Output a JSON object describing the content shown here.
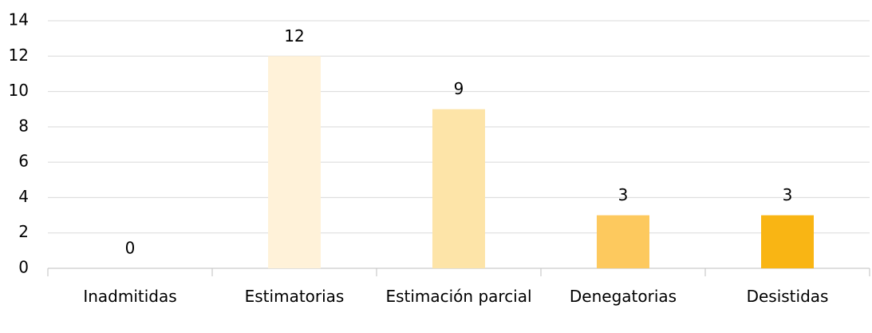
{
  "chart_data": {
    "type": "bar",
    "categories": [
      "Inadmitidas",
      "Estimatorias",
      "Estimación parcial",
      "Denegatorias",
      "Desistidas"
    ],
    "values": [
      0,
      12,
      9,
      3,
      3
    ],
    "colors": [
      "#fff3dc",
      "#fff2d9",
      "#fde4a8",
      "#fdc95e",
      "#f9b514"
    ],
    "ylim": [
      0,
      14
    ],
    "yticks": [
      0,
      2,
      4,
      6,
      8,
      10,
      12,
      14
    ],
    "grid": true
  }
}
